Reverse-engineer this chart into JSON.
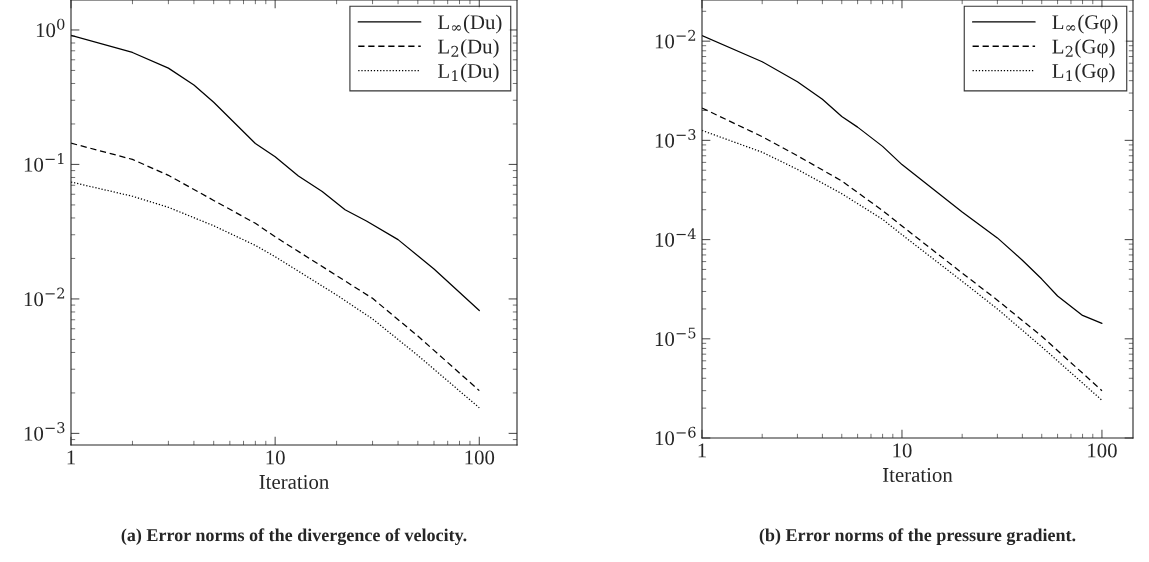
{
  "chart_data": [
    {
      "type": "line",
      "xlabel": "Iteration",
      "log": "xy",
      "grid": false,
      "legend": "top right",
      "xlim": [
        1,
        153
      ],
      "xticks": [
        1,
        10,
        100
      ],
      "ylim": [
        0.00082,
        1.67
      ],
      "yticks": [
        {
          "value": 1,
          "label": "10$^{0}$"
        },
        {
          "value": 0.1,
          "label": "10$^{−1}$"
        },
        {
          "value": 0.01,
          "label": "10$^{−2}$"
        },
        {
          "value": 0.001,
          "label": "10$^{−3}$"
        }
      ],
      "annotations": [
        "(a) Error norms of the divergence of velocity."
      ],
      "series": [
        {
          "name": "L$_{∞}$(Du)",
          "color": "#000000",
          "line_style": "solid",
          "x": [
            1,
            2,
            3,
            4,
            5,
            8,
            10,
            13,
            17,
            22,
            28,
            40,
            60,
            100
          ],
          "values": [
            0.91,
            0.68,
            0.52,
            0.39,
            0.29,
            0.143,
            0.114,
            0.082,
            0.063,
            0.046,
            0.038,
            0.0276,
            0.0167,
            0.0082
          ]
        },
        {
          "name": "L$_{2}$(Du)",
          "color": "#000000",
          "line_style": "dashed",
          "x": [
            1,
            2,
            3,
            5,
            8,
            10,
            20,
            30,
            50,
            100
          ],
          "values": [
            0.144,
            0.109,
            0.083,
            0.054,
            0.0365,
            0.029,
            0.0149,
            0.0101,
            0.0053,
            0.00208
          ]
        },
        {
          "name": "L$_{1}$(Du)",
          "color": "#000000",
          "line_style": "dotted",
          "x": [
            1,
            2,
            3,
            5,
            8,
            10,
            20,
            30,
            50,
            100
          ],
          "values": [
            0.074,
            0.058,
            0.048,
            0.035,
            0.025,
            0.0206,
            0.0107,
            0.0071,
            0.0038,
            0.00155
          ]
        }
      ]
    },
    {
      "type": "line",
      "xlabel": "Iteration",
      "log": "xy",
      "grid": false,
      "legend": "top right",
      "xlim": [
        1,
        143
      ],
      "xticks": [
        1,
        10,
        100
      ],
      "ylim": [
        1e-06,
        0.026
      ],
      "yticks": [
        {
          "value": 0.01,
          "label": "10$^{−2}$"
        },
        {
          "value": 0.001,
          "label": "10$^{−3}$"
        },
        {
          "value": 0.0001,
          "label": "10$^{−4}$"
        },
        {
          "value": 1e-05,
          "label": "10$^{−5}$"
        },
        {
          "value": 1e-06,
          "label": "10$^{−6}$"
        }
      ],
      "annotations": [
        "(b) Error norms of the pressure gradient."
      ],
      "series": [
        {
          "name": "L$_{∞}$(Gφ)",
          "color": "#000000",
          "line_style": "solid",
          "x": [
            1,
            2,
            3,
            4,
            5,
            6,
            8,
            10,
            20,
            30,
            40,
            50,
            60,
            80,
            100
          ],
          "values": [
            0.0114,
            0.0062,
            0.0039,
            0.0026,
            0.00174,
            0.00136,
            0.00087,
            0.00057,
            0.00019,
            0.000104,
            6.2e-05,
            4e-05,
            2.7e-05,
            1.72e-05,
            1.43e-05
          ]
        },
        {
          "name": "L$_{2}$(Gφ)",
          "color": "#000000",
          "line_style": "dashed",
          "x": [
            1,
            2,
            3,
            5,
            8,
            10,
            20,
            30,
            50,
            100
          ],
          "values": [
            0.00212,
            0.00109,
            0.0007,
            0.00039,
            0.000196,
            0.000137,
            4.6e-05,
            2.45e-05,
            1.06e-05,
            3e-06
          ]
        },
        {
          "name": "L$_{1}$(Gφ)",
          "color": "#000000",
          "line_style": "dotted",
          "x": [
            1,
            2,
            3,
            5,
            8,
            10,
            20,
            30,
            50,
            100
          ],
          "values": [
            0.00126,
            0.00076,
            0.00051,
            0.00029,
            0.00016,
            0.000112,
            3.8e-05,
            2e-05,
            8.3e-06,
            2.4e-06
          ]
        }
      ]
    }
  ]
}
